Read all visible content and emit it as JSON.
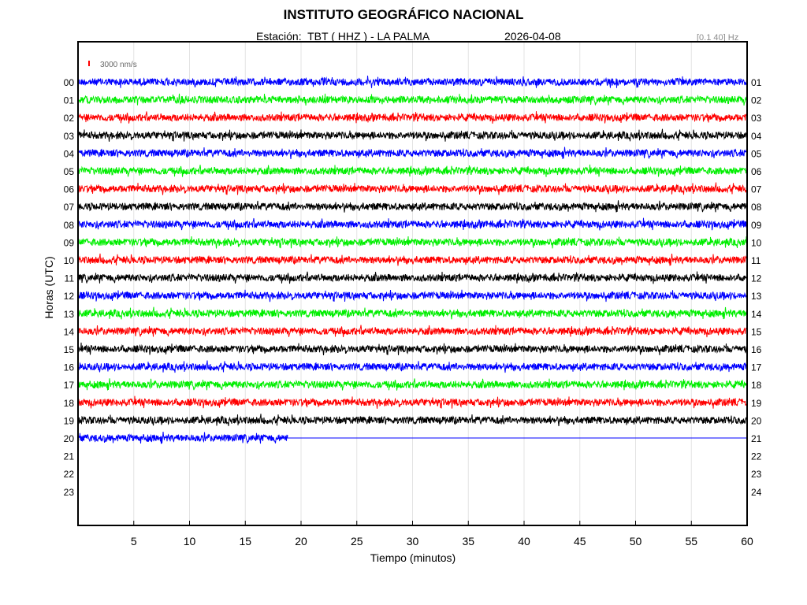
{
  "header": {
    "title": "INSTITUTO GEOGRÁFICO NACIONAL",
    "station": "Estación:  TBT ( HHZ ) - LA PALMA",
    "date": "2026-04-08",
    "filter": "[0.1 40] Hz"
  },
  "chart_data": {
    "type": "line",
    "title": "INSTITUTO GEOGRÁFICO NACIONAL",
    "xlabel": "Tiempo (minutos)",
    "ylabel": "Horas (UTC)",
    "xlim": [
      0,
      60
    ],
    "x_ticks": [
      5,
      10,
      15,
      20,
      25,
      30,
      35,
      40,
      45,
      50,
      55,
      60
    ],
    "left_hour_labels": [
      "00",
      "01",
      "02",
      "03",
      "04",
      "05",
      "06",
      "07",
      "08",
      "09",
      "10",
      "11",
      "12",
      "13",
      "14",
      "15",
      "16",
      "17",
      "18",
      "19",
      "20",
      "21",
      "22",
      "23"
    ],
    "right_hour_labels": [
      "01",
      "02",
      "03",
      "04",
      "05",
      "06",
      "07",
      "08",
      "09",
      "10",
      "11",
      "12",
      "13",
      "14",
      "15",
      "16",
      "17",
      "18",
      "19",
      "20",
      "21",
      "22",
      "23",
      "24"
    ],
    "scale_bar_label": "3000 nm/s",
    "scale_bar_color": "#ff0000",
    "trace_colors": [
      "#0000ff",
      "#00ee00",
      "#ff0000",
      "#000000"
    ],
    "last_trace_hour": 20,
    "last_trace_data_end_minute": 18.8,
    "grid": true
  }
}
